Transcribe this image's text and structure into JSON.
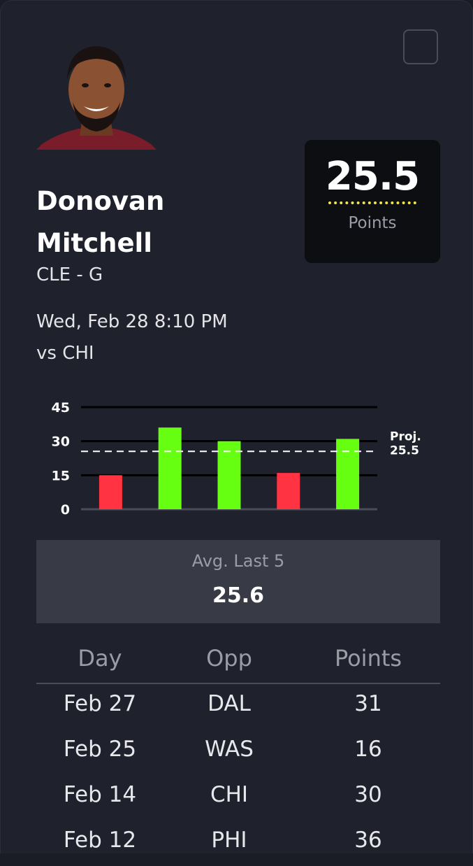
{
  "player": {
    "first_name": "Donovan",
    "last_name": "Mitchell",
    "team_position": "CLE - G",
    "game_time": "Wed, Feb 28 8:10 PM",
    "opponent": "vs CHI"
  },
  "projection": {
    "value": "25.5",
    "stat": "Points"
  },
  "colors": {
    "over": "#66ff11",
    "under": "#ff3341",
    "projection_line": "#f0e64a",
    "background": "#1f212c"
  },
  "chart_data": {
    "type": "bar",
    "values": [
      15,
      36,
      30,
      16,
      31
    ],
    "ylim": [
      0,
      45
    ],
    "yticks": [
      "45",
      "30",
      "15",
      "0"
    ],
    "threshold": 25.5,
    "threshold_label_top": "Proj.",
    "threshold_label_bottom": "25.5",
    "color_rule": "green if value > threshold else red"
  },
  "average": {
    "label": "Avg. Last 5",
    "value": "25.6"
  },
  "table": {
    "headers": [
      "Day",
      "Opp",
      "Points"
    ],
    "rows": [
      [
        "Feb 27",
        "DAL",
        "31"
      ],
      [
        "Feb 25",
        "WAS",
        "16"
      ],
      [
        "Feb 14",
        "CHI",
        "30"
      ],
      [
        "Feb 12",
        "PHI",
        "36"
      ]
    ]
  }
}
